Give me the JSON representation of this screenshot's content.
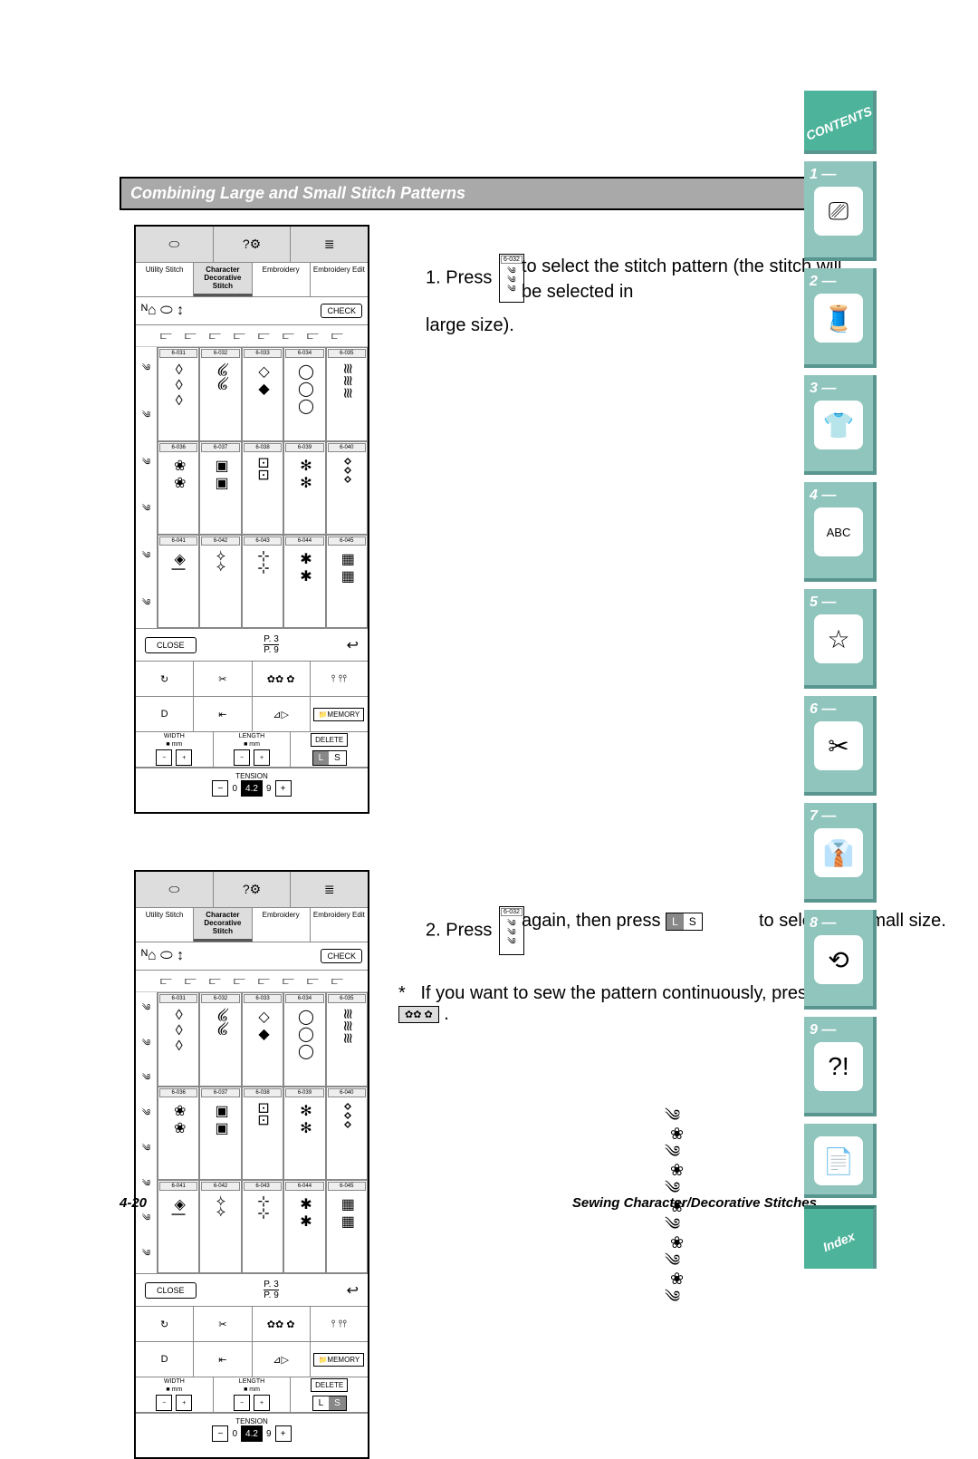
{
  "title": "Combining Large and Small Stitch Patterns",
  "footer": {
    "page": "4-20",
    "section": "Sewing Character/Decorative Stitches"
  },
  "steps": {
    "s1": {
      "num": "1.",
      "pre": "Press",
      "post": "to select the stitch pattern (the stitch will be selected in",
      "post2": "large size)."
    },
    "s2": {
      "num": "2.",
      "pre": "Press",
      "mid": "again, then press",
      "post": "to select the small size."
    },
    "s3": {
      "bullet": "*",
      "text": "If you want to sew the pattern continuously, press",
      "btn": "✿✿ ✿",
      "period": "."
    }
  },
  "stitch_icon_code": "6-032",
  "ls_button": {
    "l": "L",
    "s": "S"
  },
  "lcd": {
    "tabs": [
      "Utility Stitch",
      "Character Decorative Stitch",
      "Embroidery",
      "Embroidery Edit"
    ],
    "check": "CHECK",
    "close": "CLOSE",
    "page_top": "P.  3",
    "page_bot": "P.  9",
    "memory": "📁MEMORY",
    "delete": "DELETE",
    "width": "WIDTH",
    "length": "LENGTH",
    "mm": "mm",
    "tension": "TENSION",
    "tension_val": "4.2",
    "stars": "✿✿ ✿",
    "cells": [
      {
        "c": "6-031",
        "p": "◊◊◊"
      },
      {
        "c": "6-032",
        "p": "༄༄"
      },
      {
        "c": "6-033",
        "p": "◇◆"
      },
      {
        "c": "6-034",
        "p": "◯◯◯"
      },
      {
        "c": "6-035",
        "p": "≋≋≋"
      },
      {
        "c": "6-036",
        "p": "❀❀"
      },
      {
        "c": "6-037",
        "p": "▣▣"
      },
      {
        "c": "6-038",
        "p": "⊡⊡"
      },
      {
        "c": "6-039",
        "p": "✻✻"
      },
      {
        "c": "6-040",
        "p": "⋄⋄⋄"
      },
      {
        "c": "6-041",
        "p": "◈|"
      },
      {
        "c": "6-042",
        "p": "⟢⟢"
      },
      {
        "c": "6-043",
        "p": "⊹⊹"
      },
      {
        "c": "6-044",
        "p": "✱✱"
      },
      {
        "c": "6-045",
        "p": "▦▦"
      }
    ]
  },
  "side": {
    "contents": "CONTENTS",
    "index": "Index",
    "tabs": [
      {
        "n": "1 —",
        "icon": "⎚"
      },
      {
        "n": "2 —",
        "icon": "🧵"
      },
      {
        "n": "3 —",
        "icon": "👕"
      },
      {
        "n": "4 —",
        "icon": "ABC"
      },
      {
        "n": "5 —",
        "icon": "☆"
      },
      {
        "n": "6 —",
        "icon": "✂"
      },
      {
        "n": "7 —",
        "icon": "👔"
      },
      {
        "n": "8 —",
        "icon": "⟲"
      },
      {
        "n": "9 —",
        "icon": "?!"
      }
    ],
    "book_icon": "📄"
  },
  "colors": {
    "tab_bg": "#8fc5bd",
    "tab_accent": "#4db39a",
    "title_bg": "#a9a9a9"
  }
}
